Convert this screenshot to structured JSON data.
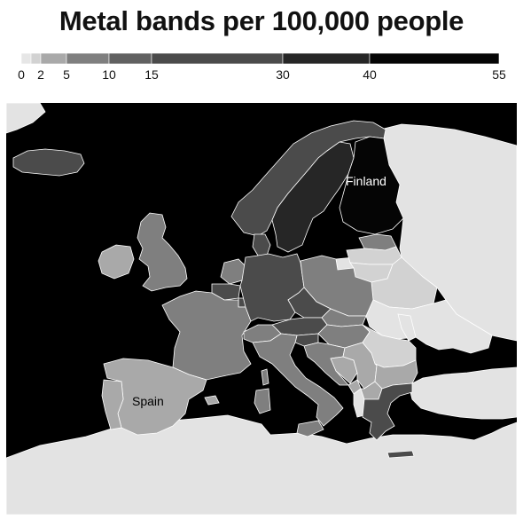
{
  "title": "Metal bands per 100,000 people",
  "legend": {
    "bins": [
      {
        "from": 0,
        "to": 2,
        "color": "#e6e6e6"
      },
      {
        "from": 2,
        "to": 5,
        "color": "#d2d2d2"
      },
      {
        "from": 5,
        "to": 10,
        "color": "#a9a9a9"
      },
      {
        "from": 10,
        "to": 15,
        "color": "#7f7f7f"
      },
      {
        "from": 15,
        "to": 30,
        "color": "#4b4b4b"
      },
      {
        "from": 30,
        "to": 40,
        "color": "#262626"
      },
      {
        "from": 40,
        "to": 55,
        "color": "#050505"
      }
    ],
    "ticks": [
      "0",
      "2",
      "5",
      "10",
      "15",
      "30",
      "40",
      "55"
    ]
  },
  "colors": {
    "water": "#000000",
    "no_data_land": "#e3e3e3",
    "borders": "#ffffff"
  },
  "labels": {
    "finland": "Finland",
    "spain": "Spain"
  },
  "regions": [
    {
      "name": "Iceland",
      "bin": 4
    },
    {
      "name": "Norway",
      "bin": 4
    },
    {
      "name": "Sweden",
      "bin": 5
    },
    {
      "name": "Finland",
      "bin": 6
    },
    {
      "name": "Russia",
      "bin": 0
    },
    {
      "name": "Estonia",
      "bin": 3
    },
    {
      "name": "Latvia",
      "bin": 1
    },
    {
      "name": "Lithuania",
      "bin": 1
    },
    {
      "name": "Belarus",
      "bin": 1
    },
    {
      "name": "Ukraine",
      "bin": 0
    },
    {
      "name": "Moldova",
      "bin": 0
    },
    {
      "name": "Ireland",
      "bin": 2
    },
    {
      "name": "United Kingdom",
      "bin": 3
    },
    {
      "name": "Denmark",
      "bin": 4
    },
    {
      "name": "Netherlands",
      "bin": 3
    },
    {
      "name": "Belgium",
      "bin": 4
    },
    {
      "name": "Luxembourg",
      "bin": 4
    },
    {
      "name": "France",
      "bin": 3
    },
    {
      "name": "Germany",
      "bin": 4
    },
    {
      "name": "Poland",
      "bin": 3
    },
    {
      "name": "Czech Republic",
      "bin": 4
    },
    {
      "name": "Slovakia",
      "bin": 3
    },
    {
      "name": "Austria",
      "bin": 4
    },
    {
      "name": "Switzerland",
      "bin": 3
    },
    {
      "name": "Hungary",
      "bin": 3
    },
    {
      "name": "Slovenia",
      "bin": 4
    },
    {
      "name": "Croatia",
      "bin": 3
    },
    {
      "name": "Bosnia and Herzegovina",
      "bin": 2
    },
    {
      "name": "Serbia",
      "bin": 2
    },
    {
      "name": "Montenegro",
      "bin": 2
    },
    {
      "name": "Albania",
      "bin": 0
    },
    {
      "name": "North Macedonia",
      "bin": 2
    },
    {
      "name": "Romania",
      "bin": 1
    },
    {
      "name": "Bulgaria",
      "bin": 2
    },
    {
      "name": "Greece",
      "bin": 4
    },
    {
      "name": "Turkey",
      "bin": 0
    },
    {
      "name": "Italy",
      "bin": 3
    },
    {
      "name": "Spain",
      "bin": 2
    },
    {
      "name": "Portugal",
      "bin": 2
    },
    {
      "name": "North Africa",
      "bin": 0
    }
  ]
}
